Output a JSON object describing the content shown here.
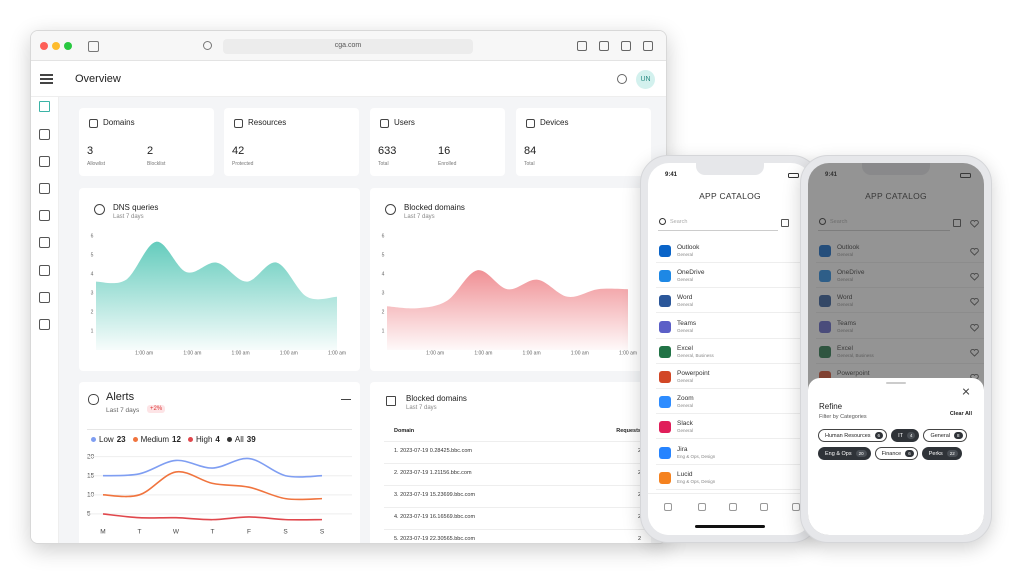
{
  "browser": {
    "url": "cga.com"
  },
  "header": {
    "title": "Overview",
    "avatar": "UN"
  },
  "stats": [
    {
      "title": "Domains",
      "items": [
        {
          "value": "3",
          "label": "Allowlist"
        },
        {
          "value": "2",
          "label": "Blocklist"
        }
      ]
    },
    {
      "title": "Resources",
      "items": [
        {
          "value": "42",
          "label": "Protected"
        }
      ]
    },
    {
      "title": "Users",
      "items": [
        {
          "value": "633",
          "label": "Total"
        },
        {
          "value": "16",
          "label": "Enrolled"
        }
      ]
    },
    {
      "title": "Devices",
      "items": [
        {
          "value": "84",
          "label": "Total"
        }
      ]
    }
  ],
  "dns_chart": {
    "type": "area",
    "title": "DNS queries",
    "subtitle": "Last 7 days",
    "color": "#5cc9b9",
    "ylim": [
      0,
      6
    ],
    "yticks": [
      1,
      2,
      3,
      4,
      5,
      6
    ],
    "x_labels": [
      "1:00 am",
      "1:00 am",
      "1:00 am",
      "1:00 am",
      "1:00 am"
    ],
    "values": [
      3.6,
      3.7,
      5.7,
      4.1,
      4.6,
      3.6,
      4.6,
      2.8,
      2.8
    ]
  },
  "blocked_chart": {
    "type": "area",
    "title": "Blocked domains",
    "subtitle": "Last 7 days",
    "color": "#ef8a8f",
    "ylim": [
      0,
      6
    ],
    "yticks": [
      1,
      2,
      3,
      4,
      5,
      6
    ],
    "x_labels": [
      "1:00 am",
      "1:00 am",
      "1:00 am",
      "1:00 am",
      "1:00 am"
    ],
    "values": [
      2.3,
      2.2,
      2.6,
      4.2,
      3.2,
      3.7,
      2.8,
      3.2,
      3.2
    ]
  },
  "alerts": {
    "type": "line",
    "title": "Alerts",
    "subtitle": "Last 7 days",
    "change": "+2%",
    "categories": [
      "M",
      "T",
      "W",
      "T",
      "F",
      "S",
      "S"
    ],
    "ylim": [
      0,
      22
    ],
    "yticks": [
      5,
      10,
      15,
      20
    ],
    "grid": true,
    "series": [
      {
        "name": "Low",
        "total": "23",
        "color": "#7f9ef2",
        "values": [
          15,
          15.5,
          19,
          17,
          19.5,
          15,
          15
        ]
      },
      {
        "name": "Medium",
        "total": "12",
        "color": "#f0743e",
        "values": [
          10,
          10,
          16,
          13,
          12,
          9,
          9
        ]
      },
      {
        "name": "High",
        "total": "4",
        "color": "#e0474c",
        "values": [
          5,
          4,
          4,
          3.5,
          4.2,
          3.5,
          3.5
        ]
      }
    ],
    "all": {
      "name": "All",
      "total": "39",
      "color": "#333333"
    }
  },
  "blocked_table": {
    "title": "Blocked domains",
    "subtitle": "Last 7 days",
    "columns": [
      "Domain",
      "Requests"
    ],
    "rows": [
      [
        "1. 2023-07-19 0.28425.bbc.com",
        "2"
      ],
      [
        "2. 2023-07-19 1.21156.bbc.com",
        "2"
      ],
      [
        "3. 2023-07-19 15.23699.bbc.com",
        "2"
      ],
      [
        "4. 2023-07-19 16.16569.bbc.com",
        "2"
      ],
      [
        "5. 2023-07-19 22.30565.bbc.com",
        "2"
      ]
    ]
  },
  "phone_catalog": {
    "time": "9:41",
    "title": "APP CATALOG",
    "search": "Search",
    "apps": [
      {
        "name": "Outlook",
        "category": "General",
        "color": "#0a64c8"
      },
      {
        "name": "OneDrive",
        "category": "General",
        "color": "#1e88e5"
      },
      {
        "name": "Word",
        "category": "General",
        "color": "#2b579a"
      },
      {
        "name": "Teams",
        "category": "General",
        "color": "#5b5fc7"
      },
      {
        "name": "Excel",
        "category": "General, Business",
        "color": "#217346"
      },
      {
        "name": "Powerpoint",
        "category": "General",
        "color": "#d24726"
      },
      {
        "name": "Zoom",
        "category": "General",
        "color": "#2d8cff"
      },
      {
        "name": "Slack",
        "category": "General",
        "color": "#e01e5a"
      },
      {
        "name": "Jira",
        "category": "Eng & Ops, Design",
        "color": "#2684ff"
      },
      {
        "name": "Lucid",
        "category": "Eng & Ops, Design",
        "color": "#f5821f"
      }
    ]
  },
  "phone_refine": {
    "time": "9:41",
    "title": "APP CATALOG",
    "search": "Search",
    "apps": [
      {
        "name": "Outlook",
        "category": "General",
        "color": "#0a64c8"
      },
      {
        "name": "OneDrive",
        "category": "General",
        "color": "#1e88e5"
      },
      {
        "name": "Word",
        "category": "General",
        "color": "#2b579a"
      },
      {
        "name": "Teams",
        "category": "General",
        "color": "#5b5fc7"
      },
      {
        "name": "Excel",
        "category": "General, Business",
        "color": "#217346"
      },
      {
        "name": "Powerpoint",
        "category": "General",
        "color": "#d24726"
      }
    ],
    "refine": {
      "title": "Refine",
      "subtitle": "Filter by Categories",
      "clear": "Clear All",
      "chips": [
        {
          "name": "Human Resources",
          "count": "6",
          "selected": false
        },
        {
          "name": "IT",
          "count": "4",
          "selected": true
        },
        {
          "name": "General",
          "count": "8",
          "selected": false
        },
        {
          "name": "Eng & Ops",
          "count": "20",
          "selected": true
        },
        {
          "name": "Finance",
          "count": "6",
          "selected": false
        },
        {
          "name": "Perks",
          "count": "22",
          "selected": true
        }
      ]
    }
  }
}
